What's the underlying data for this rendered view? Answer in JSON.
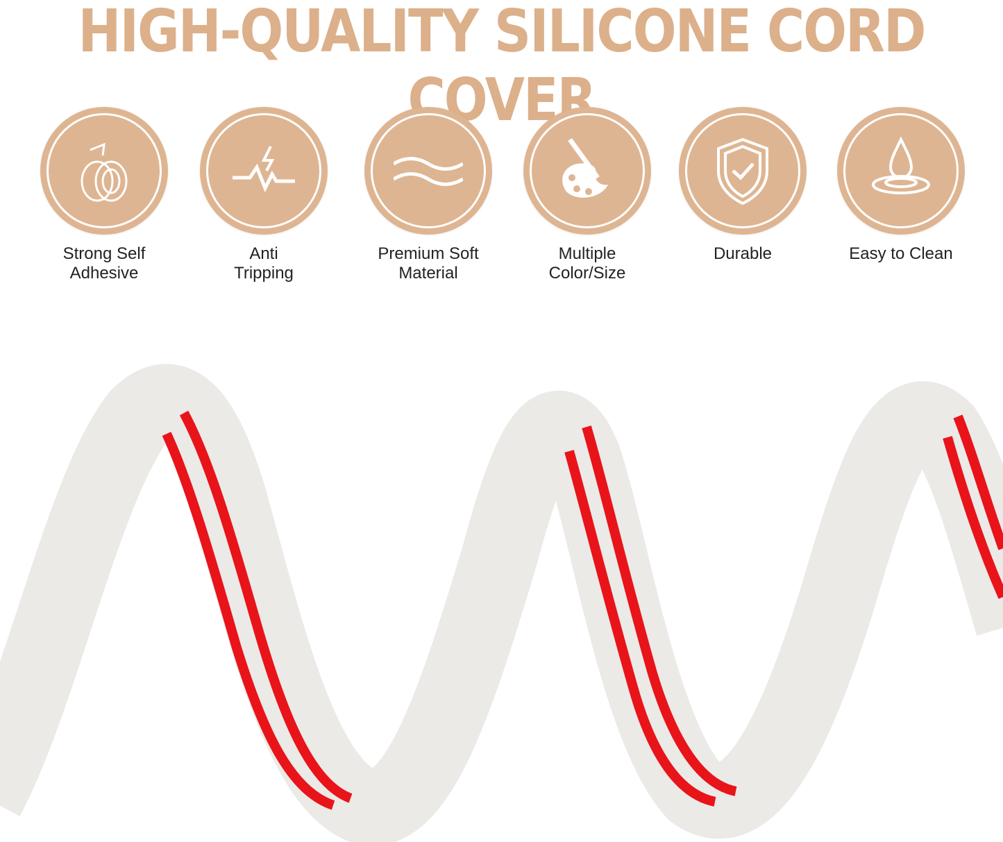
{
  "title": "HIGH-QUALITY SILICONE CORD COVER",
  "features": [
    {
      "icon": "tape-roll-icon",
      "line1": "Strong Self",
      "line2": "Adhesive"
    },
    {
      "icon": "trip-lightning-icon",
      "line1": "Anti",
      "line2": "Tripping"
    },
    {
      "icon": "waves-icon",
      "line1": "Premium Soft",
      "line2": "Material"
    },
    {
      "icon": "paint-palette-icon",
      "line1": "Multiple",
      "line2": "Color/Size"
    },
    {
      "icon": "shield-check-icon",
      "line1": "Durable",
      "line2": ""
    },
    {
      "icon": "water-drop-icon",
      "line1": "Easy to Clean",
      "line2": ""
    }
  ],
  "colors": {
    "accent": "#deb592",
    "cord": "#ebeae7",
    "adhesive": "#e8141a"
  }
}
